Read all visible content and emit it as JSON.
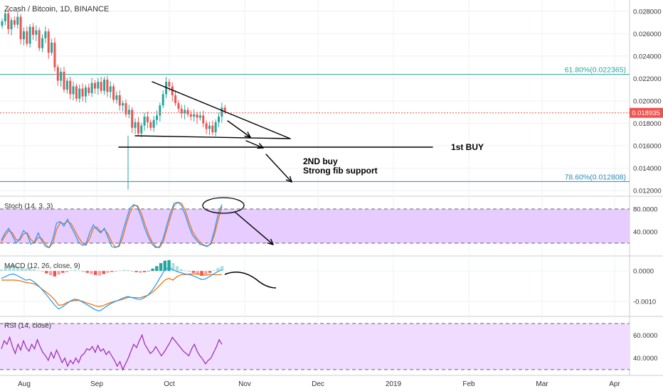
{
  "header": {
    "title": "Zcash / Bitcoin, 1D, BINANCE"
  },
  "colors": {
    "up": "#26a69a",
    "down": "#ef5350",
    "grid": "#eef0f3",
    "fib618": "#26a69a",
    "fib786": "#2a8ab5",
    "price_line": "#ef5350",
    "stoch_fill": "#e6ccff",
    "rsi_fill": "#efdcff",
    "stoch_k": "#2196f3",
    "stoch_d": "#ef6c00",
    "rsi_line": "#9c27b0",
    "axis_text": "#333333",
    "fib_label_text": "#26a69a"
  },
  "annotations": {
    "first_buy": "1st BUY",
    "second_buy": "2ND buy",
    "fib_support": "Strong fib support"
  },
  "chart_data": [
    {
      "type": "candlestick",
      "title": "Zcash / Bitcoin, 1D, BINANCE",
      "x_tick_labels": [
        "Aug",
        "Sep",
        "Oct",
        "Nov",
        "Dec",
        "2019",
        "Feb",
        "Mar",
        "Apr"
      ],
      "y_ticks": [
        0.012,
        0.014,
        0.016,
        0.018,
        0.02,
        0.022,
        0.024,
        0.026,
        0.028
      ],
      "y_tick_labels": [
        "0.012000",
        "0.014000",
        "0.016000",
        "0.018000",
        "0.020000",
        "0.022000",
        "0.024000",
        "0.026000",
        "0.028000"
      ],
      "ylim": [
        0.0115,
        0.029
      ],
      "current_price": 0.018935,
      "current_price_label": "0.018935",
      "fib_levels": [
        {
          "label": "61.80%(0.022365)",
          "value": 0.022365
        },
        {
          "label": "78.60%(0.012808)",
          "value": 0.012808
        }
      ],
      "closes": [
        0.0271,
        0.0278,
        0.0264,
        0.0272,
        0.0268,
        0.0275,
        0.0255,
        0.0262,
        0.0251,
        0.0266,
        0.0259,
        0.0263,
        0.0247,
        0.0256,
        0.0262,
        0.0243,
        0.0252,
        0.023,
        0.0218,
        0.0226,
        0.021,
        0.0218,
        0.0206,
        0.0213,
        0.0202,
        0.0211,
        0.0204,
        0.0212,
        0.0207,
        0.0216,
        0.0211,
        0.0217,
        0.0209,
        0.0219,
        0.0208,
        0.0213,
        0.0201,
        0.0205,
        0.0196,
        0.0198,
        0.0188,
        0.0192,
        0.0176,
        0.0181,
        0.0171,
        0.0178,
        0.0186,
        0.0181,
        0.0176,
        0.0183,
        0.0187,
        0.0196,
        0.0206,
        0.0217,
        0.0213,
        0.0205,
        0.0198,
        0.0193,
        0.0189,
        0.0192,
        0.0188,
        0.0186,
        0.0188,
        0.0185,
        0.0187,
        0.018,
        0.0175,
        0.0178,
        0.0172,
        0.0181,
        0.0186,
        0.0194,
        0.0191
      ],
      "annotations_text": [
        "1st BUY",
        "2ND buy",
        "Strong fib support"
      ]
    },
    {
      "type": "line",
      "title": "Stoch (14, 3, 3)",
      "y_tick_labels": [
        "80.0000",
        "40.0000"
      ],
      "y_ticks": [
        80,
        40
      ],
      "ylim": [
        0,
        100
      ],
      "bands": [
        80,
        20
      ],
      "series": [
        {
          "name": "K",
          "values": [
            25,
            38,
            46,
            33,
            20,
            28,
            42,
            36,
            18,
            22,
            38,
            24,
            14,
            12,
            28,
            55,
            58,
            50,
            62,
            48,
            36,
            22,
            16,
            18,
            38,
            52,
            44,
            38,
            46,
            30,
            14,
            12,
            16,
            40,
            62,
            82,
            88,
            84,
            66,
            46,
            30,
            18,
            12,
            14,
            28,
            52,
            74,
            90,
            92,
            86,
            70,
            50,
            34,
            26,
            18,
            16,
            14,
            20,
            44,
            72,
            88
          ]
        },
        {
          "name": "D",
          "values": [
            22,
            33,
            42,
            38,
            26,
            25,
            36,
            38,
            26,
            21,
            30,
            28,
            18,
            12,
            20,
            44,
            56,
            54,
            58,
            54,
            42,
            30,
            20,
            16,
            28,
            46,
            48,
            40,
            44,
            36,
            22,
            13,
            14,
            30,
            54,
            74,
            86,
            86,
            74,
            54,
            36,
            22,
            14,
            12,
            22,
            44,
            66,
            86,
            92,
            90,
            78,
            58,
            40,
            30,
            22,
            17,
            15,
            18,
            36,
            62,
            84
          ]
        }
      ]
    },
    {
      "type": "bar",
      "title": "MACD (12, 26, close, 9)",
      "y_tick_labels": [
        "0.0000",
        "-0.0010"
      ],
      "y_ticks": [
        0.0,
        -0.001
      ],
      "ylim": [
        -0.00145,
        0.00045
      ],
      "histogram": [
        5e-05,
        0.00012,
        0.00018,
        0.0002,
        0.00015,
        0.0001,
        8e-05,
        0.00012,
        6e-05,
        2e-05,
        -2e-05,
        -8e-05,
        -0.00014,
        -0.00018,
        -0.00012,
        -6e-05,
        -4e-05,
        2e-05,
        4e-05,
        1e-05,
        -3e-05,
        -6e-05,
        -0.0001,
        -0.00013,
        -0.00015,
        -0.0001,
        -6e-05,
        -3e-05,
        -1e-05,
        2e-05,
        4e-05,
        3e-05,
        -1e-05,
        -4e-05,
        -6e-05,
        -4e-05,
        1e-05,
        8e-05,
        0.00016,
        0.00026,
        0.00034,
        0.00036,
        0.00026,
        0.00016,
        6e-05,
        2e-05,
        -2e-05,
        -6e-05,
        -0.00012,
        -0.00016,
        -0.00012,
        -6e-05,
        2e-05,
        0.0001,
        0.00016
      ],
      "series": [
        {
          "name": "MACD",
          "values": [
            -0.00025,
            -0.00018,
            -0.00012,
            -0.0001,
            -0.00016,
            -0.00024,
            -0.0003,
            -0.00028,
            -0.00036,
            -0.00048,
            -0.00062,
            -0.00078,
            -0.00095,
            -0.00112,
            -0.00125,
            -0.00118,
            -0.00108,
            -0.00098,
            -0.00093,
            -0.00096,
            -0.00104,
            -0.00112,
            -0.0012,
            -0.00128,
            -0.00132,
            -0.00124,
            -0.00114,
            -0.00106,
            -0.001,
            -0.00094,
            -0.00088,
            -0.00084,
            -0.00088,
            -0.00092,
            -0.00094,
            -0.00088,
            -0.00078,
            -0.00062,
            -0.00042,
            -0.00018,
            4e-05,
            0.00012,
            4e-05,
            -2e-05,
            -6e-05,
            -0.0001,
            -0.00012,
            -0.00016,
            -0.00022,
            -0.00028,
            -0.00026,
            -0.00018,
            -0.0001,
            -2e-05,
            4e-05
          ]
        },
        {
          "name": "Signal",
          "values": [
            -0.0003,
            -0.0003,
            -0.0003,
            -0.0003,
            -0.00031,
            -0.00034,
            -0.00038,
            -0.0004,
            -0.00042,
            -0.0005,
            -0.0006,
            -0.0007,
            -0.00081,
            -0.00094,
            -0.00113,
            -0.00112,
            -0.00104,
            -0.001,
            -0.00097,
            -0.00097,
            -0.00101,
            -0.00106,
            -0.0011,
            -0.00115,
            -0.00117,
            -0.00114,
            -0.00108,
            -0.00103,
            -0.00099,
            -0.00096,
            -0.00092,
            -0.00087,
            -0.00087,
            -0.00088,
            -0.00088,
            -0.00084,
            -0.00079,
            -0.0007,
            -0.00058,
            -0.00044,
            -0.0003,
            -0.00024,
            -0.0003,
            -0.00018,
            -0.00012,
            -0.00012,
            -0.0001,
            -0.0001,
            -0.0001,
            -0.00012,
            -0.00014,
            -0.00012,
            -0.00012,
            -0.00012,
            -0.00012
          ]
        }
      ]
    },
    {
      "type": "line",
      "title": "RSI (14, close)",
      "y_tick_labels": [
        "60.0000",
        "40.0000"
      ],
      "y_ticks": [
        60,
        40
      ],
      "ylim": [
        25,
        75
      ],
      "bands": [
        70,
        30
      ],
      "series": [
        {
          "name": "RSI",
          "values": [
            48,
            55,
            52,
            58,
            50,
            44,
            52,
            47,
            55,
            49,
            46,
            52,
            48,
            56,
            50,
            45,
            42,
            38,
            45,
            40,
            47,
            42,
            36,
            40,
            33,
            38,
            35,
            40,
            36,
            42,
            44,
            48,
            47,
            50,
            45,
            51,
            46,
            48,
            43,
            46,
            42,
            38,
            33,
            37,
            30,
            35,
            40,
            46,
            52,
            49,
            55,
            60,
            52,
            48,
            44,
            46,
            50,
            46,
            42,
            45,
            49,
            53,
            58,
            55,
            52,
            49,
            46,
            44,
            42,
            48,
            52,
            46,
            42,
            39,
            35,
            38,
            40,
            45,
            50,
            56,
            52
          ]
        }
      ]
    }
  ]
}
